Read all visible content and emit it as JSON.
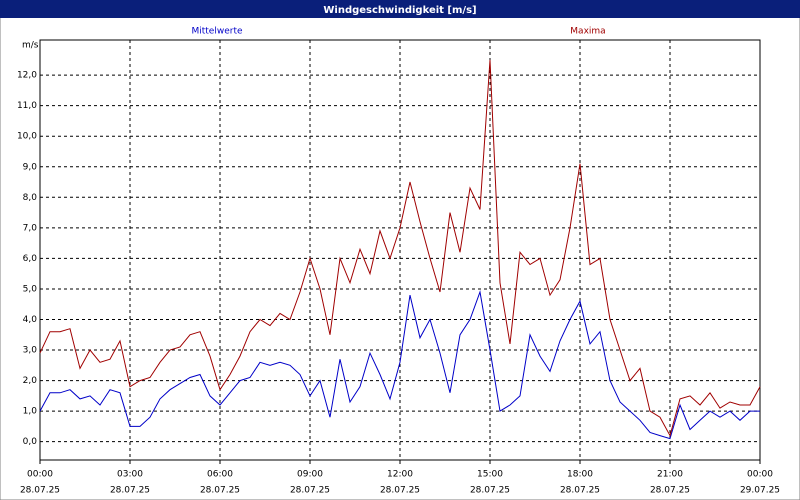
{
  "chart_data": {
    "type": "line",
    "title": "Windgeschwindigkeit [m/s]",
    "ylabel": "m/s",
    "x": [
      0,
      20,
      40,
      60,
      80,
      100,
      120,
      140,
      160,
      180,
      200,
      220,
      240,
      260,
      280,
      300,
      320,
      340,
      360,
      380,
      400,
      420,
      440,
      460,
      480,
      500,
      520,
      540,
      560,
      580,
      600,
      620,
      640,
      660,
      680,
      700,
      720,
      740,
      760,
      780,
      800,
      820,
      840,
      860,
      880,
      900,
      920,
      940,
      960,
      980,
      1000,
      1020,
      1040,
      1060,
      1080,
      1100,
      1120,
      1140,
      1160,
      1180,
      1200,
      1220,
      1240,
      1260,
      1280,
      1300,
      1320,
      1340,
      1360,
      1380,
      1400,
      1420,
      1440
    ],
    "series": [
      {
        "name": "Mittelwerte",
        "color": "#0000c8",
        "values": [
          1.0,
          1.6,
          1.6,
          1.7,
          1.4,
          1.5,
          1.2,
          1.7,
          1.6,
          0.5,
          0.5,
          0.8,
          1.4,
          1.7,
          1.9,
          2.1,
          2.2,
          1.5,
          1.2,
          1.6,
          2.0,
          2.1,
          2.6,
          2.5,
          2.6,
          2.5,
          2.2,
          1.5,
          2.0,
          0.8,
          2.7,
          1.3,
          1.8,
          2.9,
          2.2,
          1.4,
          2.6,
          4.8,
          3.4,
          4.0,
          2.9,
          1.6,
          3.5,
          4.0,
          4.9,
          3.0,
          1.0,
          1.2,
          1.5,
          3.5,
          2.8,
          2.3,
          3.3,
          4.0,
          4.6,
          3.2,
          3.6,
          2.0,
          1.3,
          1.0,
          0.7,
          0.3,
          0.2,
          0.1,
          1.2,
          0.4,
          0.7,
          1.0,
          0.8,
          1.0,
          0.7,
          1.0,
          1.0
        ]
      },
      {
        "name": "Maxima",
        "color": "#a00000",
        "values": [
          2.9,
          3.6,
          3.6,
          3.7,
          2.4,
          3.0,
          2.6,
          2.7,
          3.3,
          1.8,
          2.0,
          2.1,
          2.6,
          3.0,
          3.1,
          3.5,
          3.6,
          2.8,
          1.7,
          2.2,
          2.8,
          3.6,
          4.0,
          3.8,
          4.2,
          4.0,
          4.9,
          6.0,
          5.0,
          3.5,
          6.0,
          5.2,
          6.3,
          5.5,
          6.9,
          6.0,
          7.0,
          8.5,
          7.2,
          6.0,
          4.9,
          7.5,
          6.2,
          8.3,
          7.6,
          12.5,
          5.2,
          3.2,
          6.2,
          5.8,
          6.0,
          4.8,
          5.3,
          7.0,
          9.1,
          5.8,
          6.0,
          4.0,
          3.0,
          2.0,
          2.4,
          1.0,
          0.8,
          0.2,
          1.4,
          1.5,
          1.2,
          1.6,
          1.1,
          1.3,
          1.2,
          1.2,
          1.8
        ]
      }
    ],
    "xlim": [
      0,
      1440
    ],
    "xticks": [
      {
        "value": 0,
        "label": "00:00",
        "date": "28.07.25"
      },
      {
        "value": 180,
        "label": "03:00",
        "date": "28.07.25"
      },
      {
        "value": 360,
        "label": "06:00",
        "date": "28.07.25"
      },
      {
        "value": 540,
        "label": "09:00",
        "date": "28.07.25"
      },
      {
        "value": 720,
        "label": "12:00",
        "date": "28.07.25"
      },
      {
        "value": 900,
        "label": "15:00",
        "date": "28.07.25"
      },
      {
        "value": 1080,
        "label": "18:00",
        "date": "28.07.25"
      },
      {
        "value": 1260,
        "label": "21:00",
        "date": "28.07.25"
      },
      {
        "value": 1440,
        "label": "00:00",
        "date": "29.07.25"
      }
    ],
    "ylim": [
      -0.6,
      13.15
    ],
    "yticks": [
      {
        "value": 0,
        "label": "0,0"
      },
      {
        "value": 1,
        "label": "1,0"
      },
      {
        "value": 2,
        "label": "2,0"
      },
      {
        "value": 3,
        "label": "3,0"
      },
      {
        "value": 4,
        "label": "4,0"
      },
      {
        "value": 5,
        "label": "5,0"
      },
      {
        "value": 6,
        "label": "6,0"
      },
      {
        "value": 7,
        "label": "7,0"
      },
      {
        "value": 8,
        "label": "8,0"
      },
      {
        "value": 9,
        "label": "9,0"
      },
      {
        "value": 10,
        "label": "10,0"
      },
      {
        "value": 11,
        "label": "11,0"
      },
      {
        "value": 12,
        "label": "12,0"
      }
    ],
    "grid": true
  }
}
